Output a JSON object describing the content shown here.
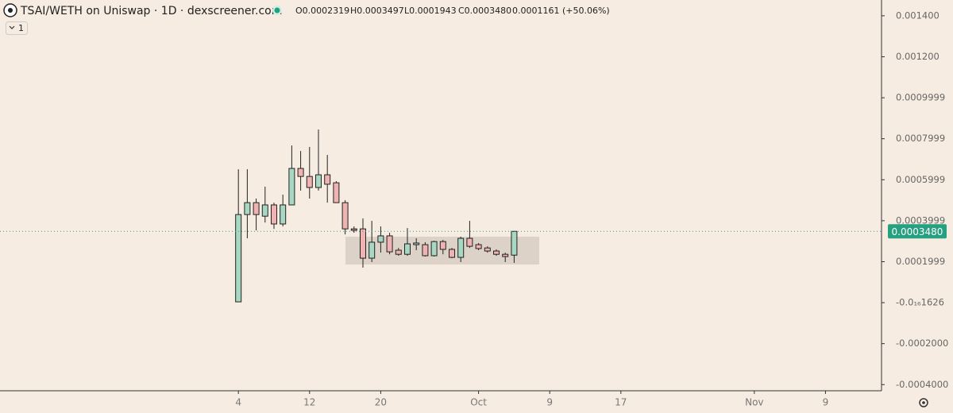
{
  "header": {
    "title": "TSAI/WETH on Uniswap · 1D · dexscreener.com",
    "legend": [
      "O0.0002319",
      "H0.0003497",
      "L0.0001943",
      "C0.0003480",
      "0.0001161 (+50.06%)"
    ],
    "badge": "1"
  },
  "chart_data": {
    "type": "candlestick",
    "x": [
      0,
      1,
      2,
      3,
      4,
      5,
      6,
      7,
      8,
      9,
      10,
      11,
      12,
      13,
      14,
      15,
      16,
      17,
      18,
      19,
      20,
      21,
      22,
      23,
      24,
      25,
      26,
      27,
      28,
      29,
      30,
      31
    ],
    "open": [
      3.9e-06,
      0.00043,
      0.000488,
      0.000422,
      0.000477,
      0.000384,
      0.000477,
      0.000655,
      0.000616,
      0.000562,
      0.000624,
      0.000585,
      0.000488,
      0.00036,
      0.00036,
      0.000217,
      0.000295,
      0.000326,
      0.000256,
      0.000236,
      0.000283,
      0.000283,
      0.000229,
      0.000298,
      0.00026,
      0.000221,
      0.000314,
      0.000283,
      0.000267,
      0.000252,
      0.000236,
      0.0002319
    ],
    "close": [
      0.00043,
      0.000488,
      0.00043,
      0.000477,
      0.000384,
      0.000477,
      0.000655,
      0.000616,
      0.000562,
      0.000624,
      0.000578,
      0.000488,
      0.00036,
      0.000353,
      0.000217,
      0.000295,
      0.000326,
      0.000248,
      0.000236,
      0.000287,
      0.000291,
      0.000229,
      0.000298,
      0.00026,
      0.000221,
      0.000314,
      0.000275,
      0.000264,
      0.000252,
      0.000236,
      0.000225,
      0.000348
    ],
    "high": [
      0.000651,
      0.000651,
      0.000508,
      0.000566,
      0.000488,
      0.000527,
      0.000767,
      0.00074,
      0.00076,
      0.000845,
      0.000721,
      0.000593,
      0.0005,
      0.000372,
      0.000411,
      0.000399,
      0.000372,
      0.000341,
      0.000267,
      0.000364,
      0.000314,
      0.000295,
      0.000302,
      0.000306,
      0.000267,
      0.000322,
      0.000399,
      0.000291,
      0.000275,
      0.00026,
      0.000244,
      0.0003497
    ],
    "low": [
      3.9e-06,
      0.000314,
      0.000353,
      0.000391,
      0.00036,
      0.000372,
      0.000477,
      0.000547,
      0.000508,
      0.000547,
      0.000488,
      0.000488,
      0.000333,
      0.000341,
      0.000171,
      0.000198,
      0.000244,
      0.000236,
      0.000229,
      0.000229,
      0.000256,
      0.000225,
      0.000225,
      0.000236,
      0.000217,
      0.000198,
      0.000267,
      0.000256,
      0.000244,
      0.000229,
      0.000198,
      0.0001943
    ],
    "up_color": "#a8d8c3",
    "down_color": "#efb3b3",
    "xlim": [
      -26.8,
      72.3
    ],
    "xticks": [
      {
        "value": 0,
        "label": "4"
      },
      {
        "value": 8,
        "label": "12"
      },
      {
        "value": 16,
        "label": "20"
      },
      {
        "value": 27,
        "label": "Oct"
      },
      {
        "value": 35,
        "label": "9"
      },
      {
        "value": 43,
        "label": "17"
      },
      {
        "value": 58,
        "label": "Nov"
      },
      {
        "value": 66,
        "label": "9"
      }
    ],
    "ylim": [
      -0.00043,
      0.001477
    ],
    "yticks": [
      {
        "value": 0.0014,
        "label": "0.001400"
      },
      {
        "value": 0.0012,
        "label": "0.001200"
      },
      0.0009999,
      0.0007999,
      0.0005999,
      0.0003999,
      0.0001999,
      {
        "value": -1.626e-17,
        "label": "-0.0₁₆1626"
      },
      {
        "value": -0.0002,
        "label": "-0.0002000"
      },
      {
        "value": -0.0004,
        "label": "-0.0004000"
      }
    ],
    "last_price": {
      "value": 0.000348,
      "label": "0.0003480"
    },
    "last_price_color": "#26a17f"
  }
}
